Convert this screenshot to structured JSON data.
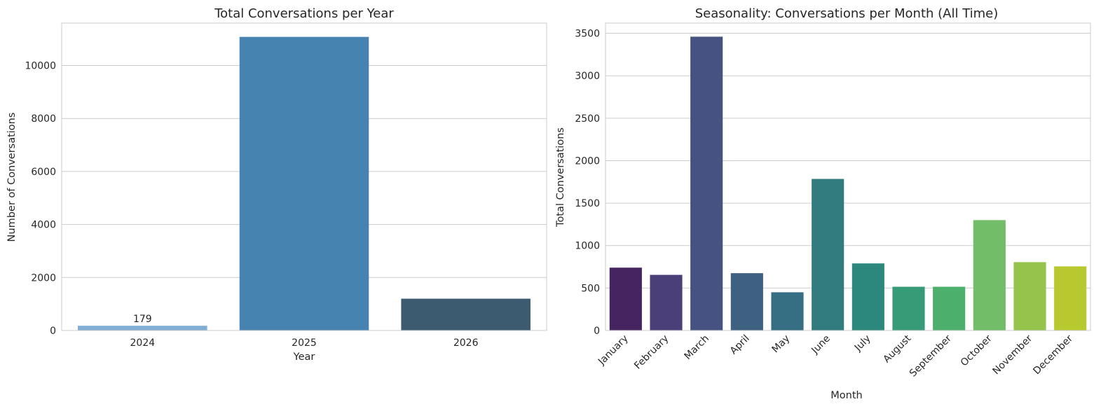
{
  "chart_data": [
    {
      "type": "bar",
      "title": "Total Conversations per Year",
      "xlabel": "Year",
      "ylabel": "Number of Conversations",
      "categories": [
        "2024",
        "2025",
        "2026"
      ],
      "values": [
        179,
        11080,
        1200
      ],
      "colors": [
        "#7fadd4",
        "#4783b0",
        "#3d5b70"
      ],
      "data_labels": [
        {
          "category": "2024",
          "text": "179"
        }
      ],
      "ylim": [
        0,
        11600
      ],
      "yticks": [
        0,
        2000,
        4000,
        6000,
        8000,
        10000
      ],
      "grid": true,
      "legend": "none"
    },
    {
      "type": "bar",
      "title": "Seasonality: Conversations per Month (All Time)",
      "xlabel": "Month",
      "ylabel": "Total Conversations",
      "categories": [
        "January",
        "February",
        "March",
        "April",
        "May",
        "June",
        "July",
        "August",
        "September",
        "October",
        "November",
        "December"
      ],
      "values": [
        740,
        655,
        3460,
        675,
        450,
        1785,
        790,
        515,
        515,
        1300,
        805,
        755
      ],
      "colors": [
        "#46245f",
        "#4a3f78",
        "#465281",
        "#3e6181",
        "#366e83",
        "#327c7f",
        "#2c887c",
        "#379b78",
        "#4caf6c",
        "#71bd68",
        "#95c44d",
        "#b8c92f"
      ],
      "ylim": [
        0,
        3620
      ],
      "yticks": [
        0,
        500,
        1000,
        1500,
        2000,
        2500,
        3000,
        3500
      ],
      "grid": true,
      "legend": "none"
    }
  ]
}
